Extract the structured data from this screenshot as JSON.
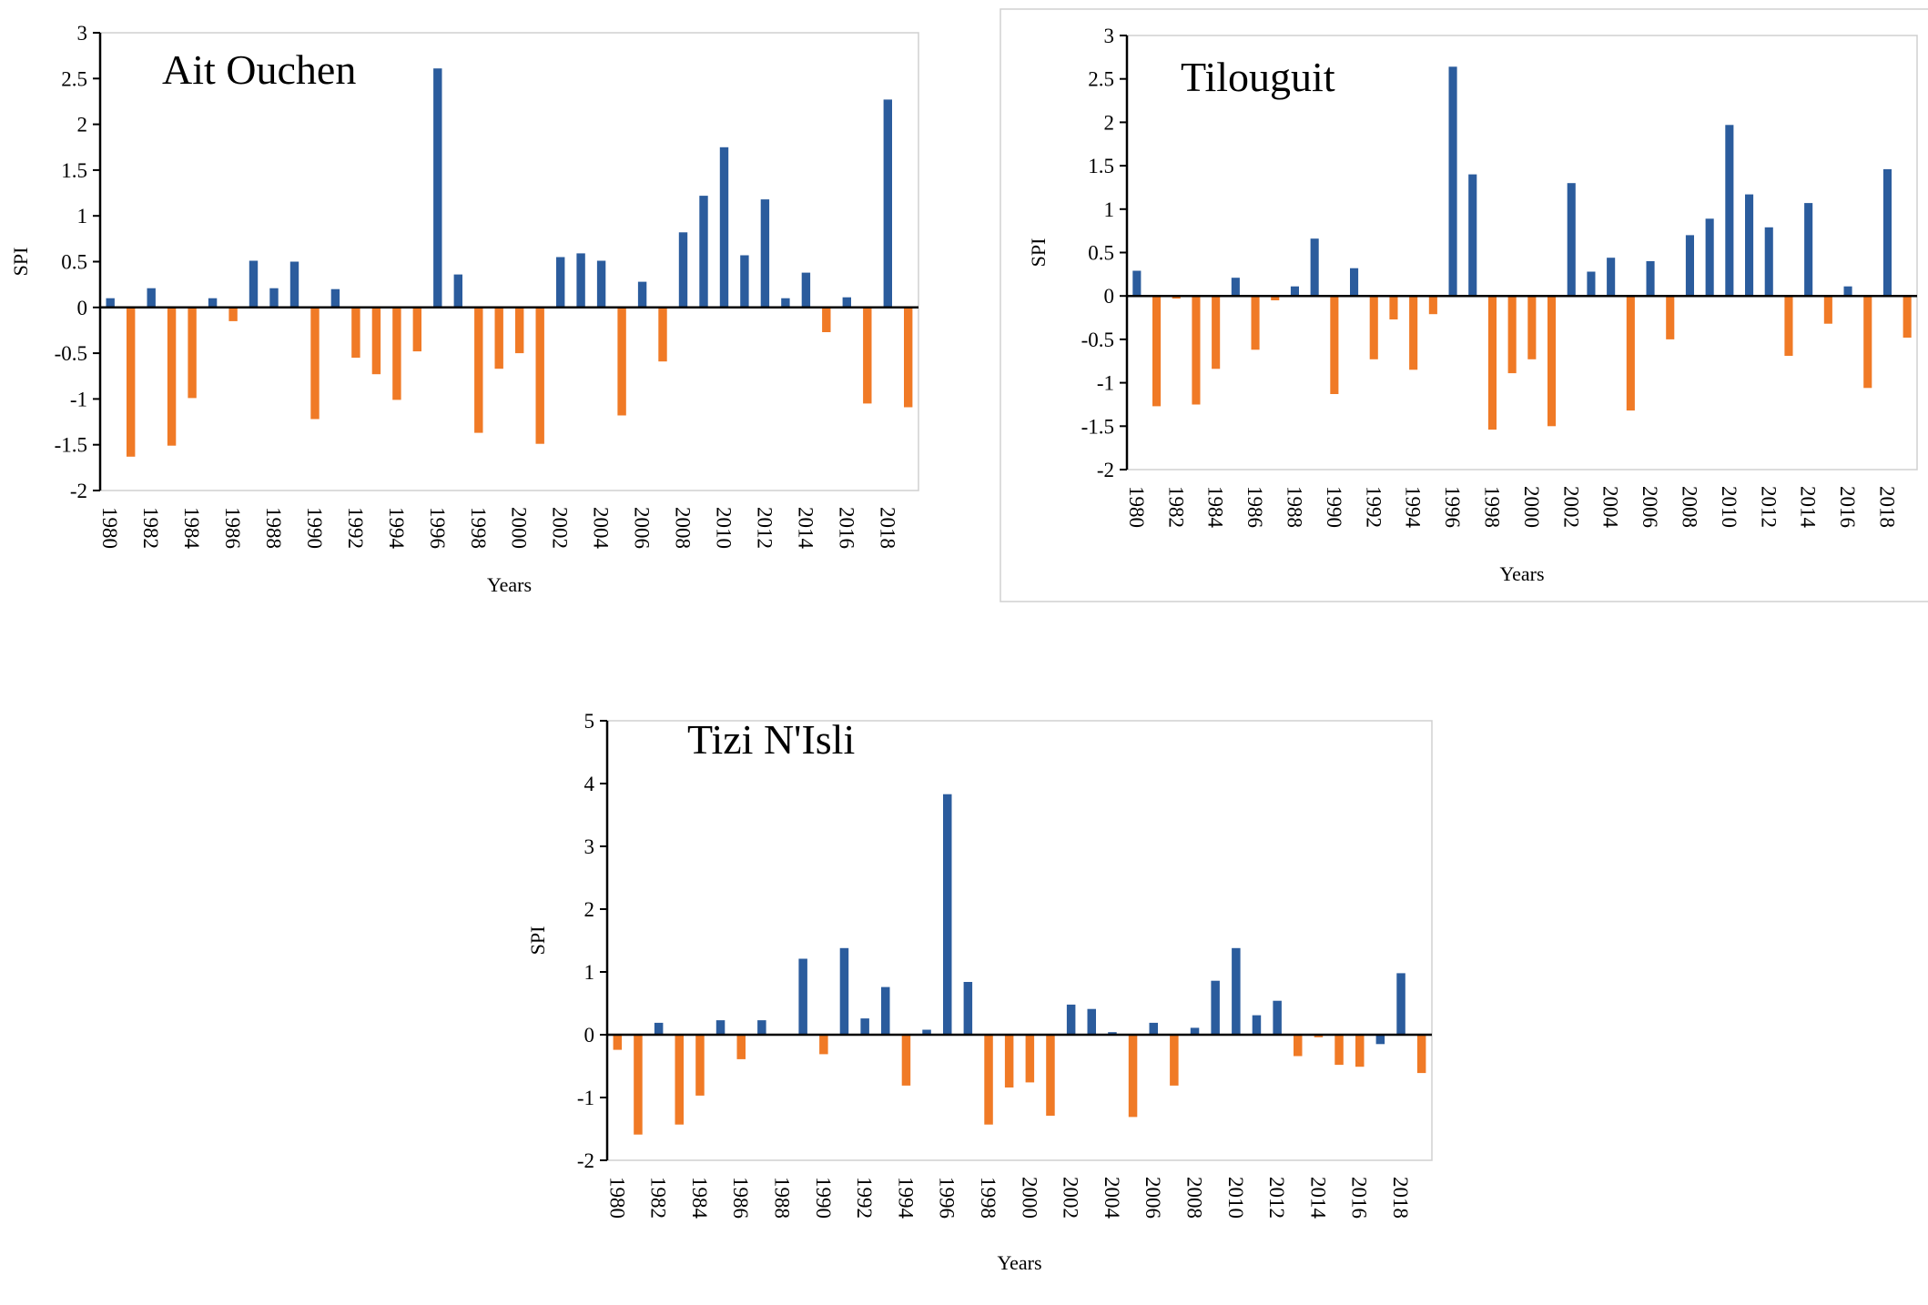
{
  "colors": {
    "positive": "#2B5C9D",
    "negative": "#F07A26",
    "axis": "#000000",
    "frame": "#D0D0D0"
  },
  "chart_data": [
    {
      "type": "bar",
      "title": "Ait Ouchen",
      "xlabel": "Years",
      "ylabel": "SPI",
      "ylim": [
        -2,
        3
      ],
      "yticks": [
        "3",
        "2.5",
        "2",
        "1.5",
        "1",
        "0.5",
        "0",
        "-0.5",
        "-1",
        "-1.5",
        "-2"
      ],
      "ytick_values": [
        3,
        2.5,
        2,
        1.5,
        1,
        0.5,
        0,
        -0.5,
        -1,
        -1.5,
        -2
      ],
      "xtick_labels": [
        "1980",
        "1982",
        "1984",
        "1986",
        "1988",
        "1990",
        "1992",
        "1994",
        "1996",
        "1998",
        "2000",
        "2002",
        "2004",
        "2006",
        "2008",
        "2010",
        "2012",
        "2014",
        "2016",
        "2018"
      ],
      "categories": [
        1980,
        1981,
        1982,
        1983,
        1984,
        1985,
        1986,
        1987,
        1988,
        1989,
        1990,
        1991,
        1992,
        1993,
        1994,
        1995,
        1996,
        1997,
        1998,
        1999,
        2000,
        2001,
        2002,
        2003,
        2004,
        2005,
        2006,
        2007,
        2008,
        2009,
        2010,
        2011,
        2012,
        2013,
        2014,
        2015,
        2016,
        2017,
        2018,
        2019
      ],
      "values": [
        0.1,
        -1.63,
        0.21,
        -1.51,
        -0.99,
        0.1,
        -0.15,
        0.51,
        0.21,
        0.5,
        -1.22,
        0.2,
        -0.55,
        -0.73,
        -1.01,
        -0.48,
        2.61,
        0.36,
        -1.37,
        -0.67,
        -0.5,
        -1.49,
        0.55,
        0.59,
        0.51,
        -1.18,
        0.28,
        -0.59,
        0.82,
        1.22,
        1.75,
        0.57,
        1.18,
        0.1,
        0.38,
        -0.27,
        0.11,
        -1.05,
        2.27,
        -1.09
      ],
      "grid": false
    },
    {
      "type": "bar",
      "title": "Tilouguit",
      "xlabel": "Years",
      "ylabel": "SPI",
      "ylim": [
        -2,
        3
      ],
      "yticks": [
        "3",
        "2.5",
        "2",
        "1.5",
        "1",
        "0.5",
        "0",
        "-0.5",
        "-1",
        "-1.5",
        "-2"
      ],
      "ytick_values": [
        3,
        2.5,
        2,
        1.5,
        1,
        0.5,
        0,
        -0.5,
        -1,
        -1.5,
        -2
      ],
      "xtick_labels": [
        "1980",
        "1982",
        "1984",
        "1986",
        "1988",
        "1990",
        "1992",
        "1994",
        "1996",
        "1998",
        "2000",
        "2002",
        "2004",
        "2006",
        "2008",
        "2010",
        "2012",
        "2014",
        "2016",
        "2018"
      ],
      "categories": [
        1980,
        1981,
        1982,
        1983,
        1984,
        1985,
        1986,
        1987,
        1988,
        1989,
        1990,
        1991,
        1992,
        1993,
        1994,
        1995,
        1996,
        1997,
        1998,
        1999,
        2000,
        2001,
        2002,
        2003,
        2004,
        2005,
        2006,
        2007,
        2008,
        2009,
        2010,
        2011,
        2012,
        2013,
        2014,
        2015,
        2016,
        2017,
        2018,
        2019
      ],
      "values": [
        0.29,
        -1.27,
        -0.03,
        -1.25,
        -0.84,
        0.21,
        -0.62,
        -0.05,
        0.11,
        0.66,
        -1.13,
        0.32,
        -0.73,
        -0.27,
        -0.85,
        -0.21,
        2.64,
        1.4,
        -1.54,
        -0.89,
        -0.73,
        -1.5,
        1.3,
        0.28,
        0.44,
        -1.32,
        0.4,
        -0.5,
        0.7,
        0.89,
        1.97,
        1.17,
        0.79,
        -0.69,
        1.07,
        -0.32,
        0.11,
        -1.06,
        1.46,
        -0.48
      ],
      "grid": false
    },
    {
      "type": "bar",
      "title": "Tizi N'Isli",
      "xlabel": "Years",
      "ylabel": "SPI",
      "ylim": [
        -2,
        5
      ],
      "yticks": [
        "5",
        "4",
        "3",
        "2",
        "1",
        "0",
        "-1",
        "-2"
      ],
      "ytick_values": [
        5,
        4,
        3,
        2,
        1,
        0,
        -1,
        -2
      ],
      "xtick_labels": [
        "1980",
        "1982",
        "1984",
        "1986",
        "1988",
        "1990",
        "1992",
        "1994",
        "1996",
        "1998",
        "2000",
        "2002",
        "2004",
        "2006",
        "2008",
        "2010",
        "2012",
        "2014",
        "2016",
        "2018"
      ],
      "categories": [
        1980,
        1981,
        1982,
        1983,
        1984,
        1985,
        1986,
        1987,
        1988,
        1989,
        1990,
        1991,
        1992,
        1993,
        1994,
        1995,
        1996,
        1997,
        1998,
        1999,
        2000,
        2001,
        2002,
        2003,
        2004,
        2005,
        2006,
        2007,
        2008,
        2009,
        2010,
        2011,
        2012,
        2013,
        2014,
        2015,
        2016,
        2017,
        2018,
        2019
      ],
      "values": [
        -0.24,
        -1.59,
        0.19,
        -1.43,
        -0.97,
        0.23,
        -0.39,
        0.23,
        0.0,
        1.21,
        -0.31,
        1.38,
        0.26,
        0.76,
        -0.81,
        0.08,
        3.83,
        0.84,
        -1.43,
        -0.84,
        -0.76,
        -1.29,
        0.48,
        0.41,
        0.04,
        -1.31,
        0.19,
        -0.81,
        0.11,
        0.86,
        1.38,
        0.31,
        0.54,
        -0.34,
        -0.04,
        -0.48,
        -0.51,
        -0.15,
        0.98,
        -0.61
      ],
      "bar_color_override": {
        "2017": "positive"
      },
      "grid": false
    }
  ]
}
